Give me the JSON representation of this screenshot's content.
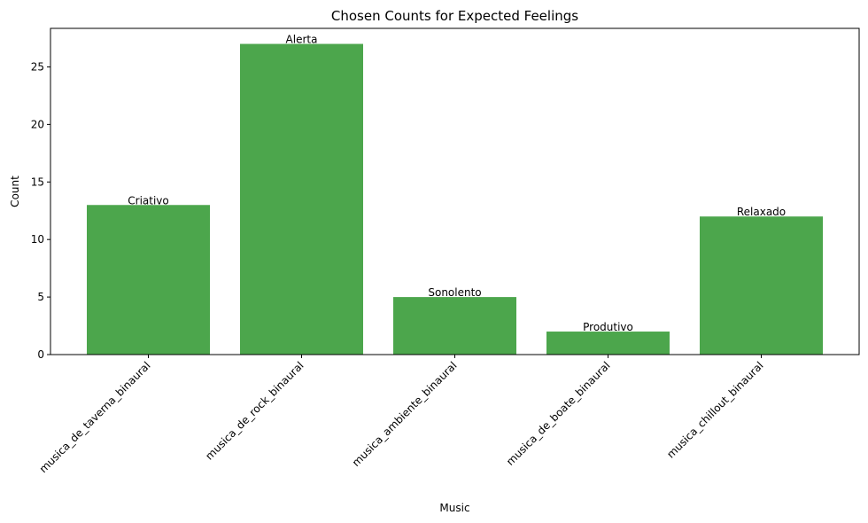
{
  "chart_data": {
    "type": "bar",
    "title": "Chosen Counts for Expected Feelings",
    "xlabel": "Music",
    "ylabel": "Count",
    "categories": [
      "musica_de_taverna_binaural",
      "musica_de_rock_binaural",
      "musica_ambiente_binaural",
      "musica_de_boate_binaural",
      "musica_chillout_binaural"
    ],
    "values": [
      13,
      27,
      5,
      2,
      12
    ],
    "data_labels": [
      "Criativo",
      "Alerta",
      "Sonolento",
      "Produtivo",
      "Relaxado"
    ],
    "yticks": [
      0,
      5,
      10,
      15,
      20,
      25
    ],
    "ylim": [
      0,
      28.35
    ],
    "grid": false,
    "bar_color": "#4ca64c"
  }
}
